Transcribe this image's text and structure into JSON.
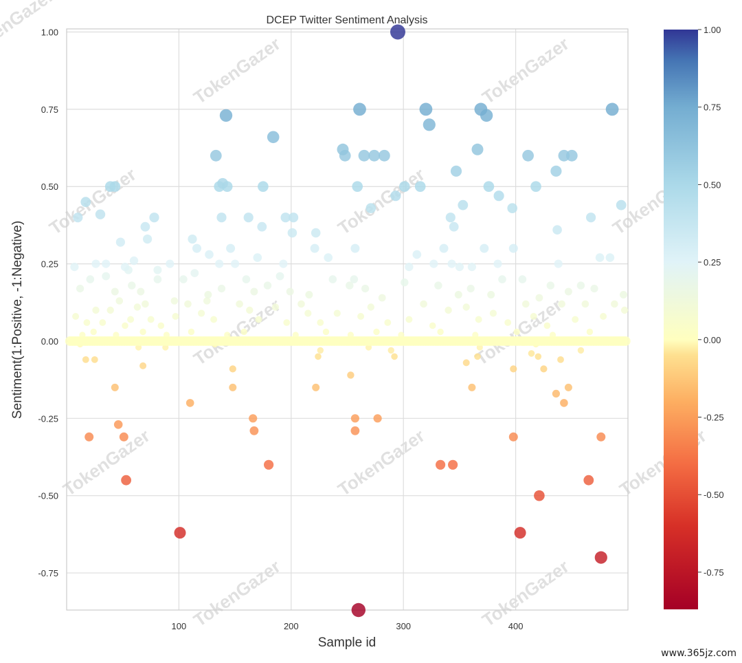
{
  "chart_data": {
    "type": "scatter",
    "title": "DCEP Twitter Sentiment Analysis",
    "xlabel": "Sample id",
    "ylabel": "Sentiment(1:Positive, -1:Negative)",
    "xlim": [
      0,
      500
    ],
    "ylim": [
      -0.87,
      1.01
    ],
    "xticks": [
      100,
      200,
      300,
      400
    ],
    "xtick_labels": [
      "100",
      "200",
      "300",
      "400"
    ],
    "yticks": [
      1.0,
      0.75,
      0.5,
      0.25,
      0.0,
      -0.25,
      -0.5,
      -0.75
    ],
    "ytick_labels": [
      "1.00",
      "0.75",
      "0.50",
      "0.25",
      "0.00",
      "-0.25",
      "-0.50",
      "-0.75"
    ],
    "colorbar": {
      "min": -0.87,
      "max": 1.0,
      "colormap": "RdYlBu",
      "ticks": [
        1.0,
        0.75,
        0.5,
        0.25,
        0.0,
        -0.25,
        -0.5,
        -0.75
      ],
      "tick_labels": [
        "1.00",
        "0.75",
        "0.50",
        "0.25",
        "0.00",
        "-0.25",
        "-0.50",
        "-0.75"
      ]
    },
    "grid": true,
    "points": [
      {
        "x": 295,
        "y": 1.0
      },
      {
        "x": 142,
        "y": 0.73
      },
      {
        "x": 261,
        "y": 0.75
      },
      {
        "x": 320,
        "y": 0.75
      },
      {
        "x": 323,
        "y": 0.7
      },
      {
        "x": 369,
        "y": 0.75
      },
      {
        "x": 374,
        "y": 0.73
      },
      {
        "x": 486,
        "y": 0.75
      },
      {
        "x": 184,
        "y": 0.66
      },
      {
        "x": 133,
        "y": 0.6
      },
      {
        "x": 246,
        "y": 0.62
      },
      {
        "x": 248,
        "y": 0.6
      },
      {
        "x": 265,
        "y": 0.6
      },
      {
        "x": 274,
        "y": 0.6
      },
      {
        "x": 283,
        "y": 0.6
      },
      {
        "x": 366,
        "y": 0.62
      },
      {
        "x": 411,
        "y": 0.6
      },
      {
        "x": 443,
        "y": 0.6
      },
      {
        "x": 450,
        "y": 0.6
      },
      {
        "x": 39,
        "y": 0.5
      },
      {
        "x": 43,
        "y": 0.5
      },
      {
        "x": 136,
        "y": 0.5
      },
      {
        "x": 139,
        "y": 0.51
      },
      {
        "x": 143,
        "y": 0.5
      },
      {
        "x": 175,
        "y": 0.5
      },
      {
        "x": 259,
        "y": 0.5
      },
      {
        "x": 301,
        "y": 0.5
      },
      {
        "x": 315,
        "y": 0.5
      },
      {
        "x": 347,
        "y": 0.55
      },
      {
        "x": 376,
        "y": 0.5
      },
      {
        "x": 418,
        "y": 0.5
      },
      {
        "x": 436,
        "y": 0.55
      },
      {
        "x": 293,
        "y": 0.47
      },
      {
        "x": 271,
        "y": 0.43
      },
      {
        "x": 385,
        "y": 0.47
      },
      {
        "x": 397,
        "y": 0.43
      },
      {
        "x": 353,
        "y": 0.44
      },
      {
        "x": 494,
        "y": 0.44
      },
      {
        "x": 10,
        "y": 0.4
      },
      {
        "x": 17,
        "y": 0.45
      },
      {
        "x": 30,
        "y": 0.41
      },
      {
        "x": 48,
        "y": 0.32
      },
      {
        "x": 70,
        "y": 0.37
      },
      {
        "x": 72,
        "y": 0.33
      },
      {
        "x": 78,
        "y": 0.4
      },
      {
        "x": 138,
        "y": 0.4
      },
      {
        "x": 162,
        "y": 0.4
      },
      {
        "x": 174,
        "y": 0.37
      },
      {
        "x": 195,
        "y": 0.4
      },
      {
        "x": 202,
        "y": 0.4
      },
      {
        "x": 201,
        "y": 0.35
      },
      {
        "x": 222,
        "y": 0.35
      },
      {
        "x": 342,
        "y": 0.4
      },
      {
        "x": 345,
        "y": 0.37
      },
      {
        "x": 467,
        "y": 0.4
      },
      {
        "x": 112,
        "y": 0.33
      },
      {
        "x": 116,
        "y": 0.3
      },
      {
        "x": 146,
        "y": 0.3
      },
      {
        "x": 221,
        "y": 0.3
      },
      {
        "x": 257,
        "y": 0.3
      },
      {
        "x": 312,
        "y": 0.28
      },
      {
        "x": 336,
        "y": 0.3
      },
      {
        "x": 372,
        "y": 0.3
      },
      {
        "x": 398,
        "y": 0.3
      },
      {
        "x": 437,
        "y": 0.36
      },
      {
        "x": 7,
        "y": 0.24
      },
      {
        "x": 26,
        "y": 0.25
      },
      {
        "x": 35,
        "y": 0.25
      },
      {
        "x": 52,
        "y": 0.24
      },
      {
        "x": 55,
        "y": 0.23
      },
      {
        "x": 60,
        "y": 0.26
      },
      {
        "x": 81,
        "y": 0.23
      },
      {
        "x": 92,
        "y": 0.25
      },
      {
        "x": 127,
        "y": 0.28
      },
      {
        "x": 136,
        "y": 0.25
      },
      {
        "x": 150,
        "y": 0.25
      },
      {
        "x": 170,
        "y": 0.27
      },
      {
        "x": 193,
        "y": 0.25
      },
      {
        "x": 233,
        "y": 0.27
      },
      {
        "x": 305,
        "y": 0.24
      },
      {
        "x": 327,
        "y": 0.25
      },
      {
        "x": 343,
        "y": 0.25
      },
      {
        "x": 350,
        "y": 0.24
      },
      {
        "x": 361,
        "y": 0.24
      },
      {
        "x": 384,
        "y": 0.25
      },
      {
        "x": 438,
        "y": 0.25
      },
      {
        "x": 475,
        "y": 0.27
      },
      {
        "x": 484,
        "y": 0.27
      },
      {
        "x": 12,
        "y": 0.17
      },
      {
        "x": 21,
        "y": 0.2
      },
      {
        "x": 35,
        "y": 0.21
      },
      {
        "x": 43,
        "y": 0.16
      },
      {
        "x": 58,
        "y": 0.18
      },
      {
        "x": 66,
        "y": 0.16
      },
      {
        "x": 81,
        "y": 0.2
      },
      {
        "x": 96,
        "y": 0.13
      },
      {
        "x": 104,
        "y": 0.2
      },
      {
        "x": 114,
        "y": 0.22
      },
      {
        "x": 126,
        "y": 0.15
      },
      {
        "x": 138,
        "y": 0.17
      },
      {
        "x": 160,
        "y": 0.2
      },
      {
        "x": 167,
        "y": 0.16
      },
      {
        "x": 179,
        "y": 0.18
      },
      {
        "x": 190,
        "y": 0.21
      },
      {
        "x": 199,
        "y": 0.16
      },
      {
        "x": 216,
        "y": 0.15
      },
      {
        "x": 237,
        "y": 0.2
      },
      {
        "x": 252,
        "y": 0.18
      },
      {
        "x": 256,
        "y": 0.2
      },
      {
        "x": 266,
        "y": 0.17
      },
      {
        "x": 281,
        "y": 0.14
      },
      {
        "x": 301,
        "y": 0.19
      },
      {
        "x": 331,
        "y": 0.18
      },
      {
        "x": 349,
        "y": 0.15
      },
      {
        "x": 360,
        "y": 0.17
      },
      {
        "x": 378,
        "y": 0.15
      },
      {
        "x": 388,
        "y": 0.2
      },
      {
        "x": 406,
        "y": 0.2
      },
      {
        "x": 421,
        "y": 0.14
      },
      {
        "x": 431,
        "y": 0.18
      },
      {
        "x": 447,
        "y": 0.16
      },
      {
        "x": 458,
        "y": 0.18
      },
      {
        "x": 470,
        "y": 0.17
      },
      {
        "x": 496,
        "y": 0.15
      },
      {
        "x": 8,
        "y": 0.08
      },
      {
        "x": 18,
        "y": 0.06
      },
      {
        "x": 26,
        "y": 0.1
      },
      {
        "x": 32,
        "y": 0.06
      },
      {
        "x": 39,
        "y": 0.1
      },
      {
        "x": 47,
        "y": 0.13
      },
      {
        "x": 52,
        "y": 0.05
      },
      {
        "x": 57,
        "y": 0.07
      },
      {
        "x": 63,
        "y": 0.11
      },
      {
        "x": 70,
        "y": 0.12
      },
      {
        "x": 75,
        "y": 0.07
      },
      {
        "x": 84,
        "y": 0.05
      },
      {
        "x": 97,
        "y": 0.08
      },
      {
        "x": 108,
        "y": 0.12
      },
      {
        "x": 120,
        "y": 0.09
      },
      {
        "x": 125,
        "y": 0.13
      },
      {
        "x": 131,
        "y": 0.07
      },
      {
        "x": 154,
        "y": 0.12
      },
      {
        "x": 163,
        "y": 0.1
      },
      {
        "x": 171,
        "y": 0.07
      },
      {
        "x": 186,
        "y": 0.11
      },
      {
        "x": 196,
        "y": 0.06
      },
      {
        "x": 209,
        "y": 0.12
      },
      {
        "x": 215,
        "y": 0.09
      },
      {
        "x": 226,
        "y": 0.06
      },
      {
        "x": 241,
        "y": 0.09
      },
      {
        "x": 262,
        "y": 0.08
      },
      {
        "x": 271,
        "y": 0.11
      },
      {
        "x": 286,
        "y": 0.06
      },
      {
        "x": 305,
        "y": 0.07
      },
      {
        "x": 318,
        "y": 0.12
      },
      {
        "x": 326,
        "y": 0.05
      },
      {
        "x": 340,
        "y": 0.1
      },
      {
        "x": 356,
        "y": 0.11
      },
      {
        "x": 367,
        "y": 0.07
      },
      {
        "x": 380,
        "y": 0.09
      },
      {
        "x": 393,
        "y": 0.06
      },
      {
        "x": 409,
        "y": 0.12
      },
      {
        "x": 416,
        "y": 0.08
      },
      {
        "x": 428,
        "y": 0.05
      },
      {
        "x": 441,
        "y": 0.12
      },
      {
        "x": 453,
        "y": 0.07
      },
      {
        "x": 462,
        "y": 0.12
      },
      {
        "x": 478,
        "y": 0.08
      },
      {
        "x": 488,
        "y": 0.12
      },
      {
        "x": 497,
        "y": 0.1
      },
      {
        "x": 14,
        "y": 0.02
      },
      {
        "x": 24,
        "y": 0.03
      },
      {
        "x": 44,
        "y": 0.02
      },
      {
        "x": 68,
        "y": 0.03
      },
      {
        "x": 89,
        "y": 0.02
      },
      {
        "x": 111,
        "y": 0.03
      },
      {
        "x": 143,
        "y": 0.02
      },
      {
        "x": 158,
        "y": 0.03
      },
      {
        "x": 204,
        "y": 0.02
      },
      {
        "x": 231,
        "y": 0.03
      },
      {
        "x": 253,
        "y": 0.02
      },
      {
        "x": 276,
        "y": 0.03
      },
      {
        "x": 298,
        "y": 0.02
      },
      {
        "x": 333,
        "y": 0.03
      },
      {
        "x": 364,
        "y": 0.02
      },
      {
        "x": 401,
        "y": 0.03
      },
      {
        "x": 433,
        "y": 0.02
      },
      {
        "x": 466,
        "y": 0.03
      },
      {
        "x": 12,
        "y": -0.01
      },
      {
        "x": 64,
        "y": -0.02
      },
      {
        "x": 88,
        "y": -0.02
      },
      {
        "x": 132,
        "y": -0.01
      },
      {
        "x": 226,
        "y": -0.03
      },
      {
        "x": 269,
        "y": -0.02
      },
      {
        "x": 289,
        "y": -0.03
      },
      {
        "x": 368,
        "y": -0.02
      },
      {
        "x": 418,
        "y": -0.01
      },
      {
        "x": 458,
        "y": -0.03
      },
      {
        "x": 17,
        "y": -0.06
      },
      {
        "x": 25,
        "y": -0.06
      },
      {
        "x": 68,
        "y": -0.08
      },
      {
        "x": 224,
        "y": -0.05
      },
      {
        "x": 292,
        "y": -0.05
      },
      {
        "x": 356,
        "y": -0.07
      },
      {
        "x": 366,
        "y": -0.05
      },
      {
        "x": 398,
        "y": -0.09
      },
      {
        "x": 414,
        "y": -0.04
      },
      {
        "x": 420,
        "y": -0.05
      },
      {
        "x": 425,
        "y": -0.09
      },
      {
        "x": 440,
        "y": -0.06
      },
      {
        "x": 148,
        "y": -0.09
      },
      {
        "x": 43,
        "y": -0.15
      },
      {
        "x": 110,
        "y": -0.2
      },
      {
        "x": 148,
        "y": -0.15
      },
      {
        "x": 222,
        "y": -0.15
      },
      {
        "x": 253,
        "y": -0.11
      },
      {
        "x": 361,
        "y": -0.15
      },
      {
        "x": 436,
        "y": -0.17
      },
      {
        "x": 443,
        "y": -0.2
      },
      {
        "x": 447,
        "y": -0.15
      },
      {
        "x": 20,
        "y": -0.31
      },
      {
        "x": 46,
        "y": -0.27
      },
      {
        "x": 51,
        "y": -0.31
      },
      {
        "x": 166,
        "y": -0.25
      },
      {
        "x": 167,
        "y": -0.29
      },
      {
        "x": 257,
        "y": -0.25
      },
      {
        "x": 257,
        "y": -0.29
      },
      {
        "x": 277,
        "y": -0.25
      },
      {
        "x": 398,
        "y": -0.31
      },
      {
        "x": 476,
        "y": -0.31
      },
      {
        "x": 53,
        "y": -0.45
      },
      {
        "x": 180,
        "y": -0.4
      },
      {
        "x": 333,
        "y": -0.4
      },
      {
        "x": 344,
        "y": -0.4
      },
      {
        "x": 465,
        "y": -0.45
      },
      {
        "x": 421,
        "y": -0.5
      },
      {
        "x": 101,
        "y": -0.62
      },
      {
        "x": 404,
        "y": -0.62
      },
      {
        "x": 476,
        "y": -0.7
      },
      {
        "x": 260,
        "y": -0.87
      }
    ]
  },
  "watermark": {
    "text": "TokenGazer"
  },
  "site_badge": {
    "text": "www.365jz.com"
  }
}
